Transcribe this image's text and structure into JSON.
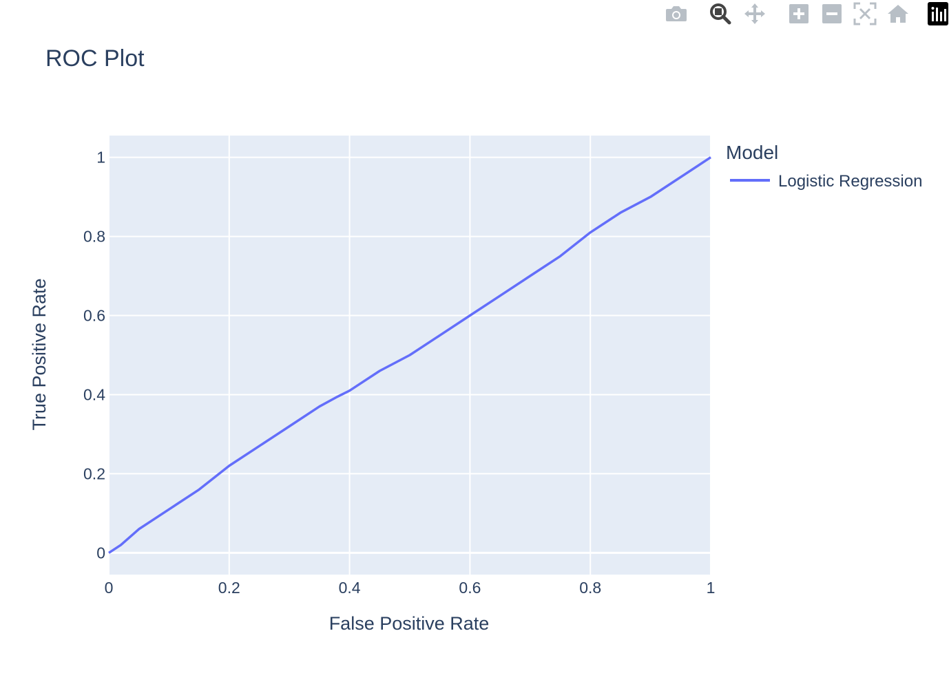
{
  "colors": {
    "plot_bg": "#e5ecf6",
    "grid": "#ffffff",
    "text": "#2a3f5f",
    "line": "#636efa",
    "modebar_icon": "#b8bfc6",
    "modebar_active": "#444444"
  },
  "modebar": {
    "buttons": [
      {
        "name": "camera-icon",
        "label": "Download plot as a png"
      },
      {
        "name": "zoom-icon",
        "label": "Zoom"
      },
      {
        "name": "pan-icon",
        "label": "Pan"
      },
      {
        "name": "zoom-in-icon",
        "label": "Zoom in"
      },
      {
        "name": "zoom-out-icon",
        "label": "Zoom out"
      },
      {
        "name": "autoscale-icon",
        "label": "Autoscale"
      },
      {
        "name": "home-icon",
        "label": "Reset axes"
      },
      {
        "name": "plotly-logo-icon",
        "label": "Produced with Plotly"
      }
    ]
  },
  "chart_data": {
    "type": "line",
    "title": "ROC Plot",
    "xlabel": "False Positive Rate",
    "ylabel": "True Positive Rate",
    "xlim": [
      0,
      1
    ],
    "ylim": [
      -0.055,
      1.055
    ],
    "xticks": [
      "0",
      "0.2",
      "0.4",
      "0.6",
      "0.8",
      "1"
    ],
    "yticks": [
      "0",
      "0.2",
      "0.4",
      "0.6",
      "0.8",
      "1"
    ],
    "xtick_values": [
      0,
      0.2,
      0.4,
      0.6,
      0.8,
      1
    ],
    "ytick_values": [
      0,
      0.2,
      0.4,
      0.6,
      0.8,
      1
    ],
    "grid": true,
    "legend": {
      "title": "Model",
      "placement": "top-right outside"
    },
    "series": [
      {
        "name": "Logistic Regression",
        "x": [
          0,
          0.02,
          0.05,
          0.1,
          0.15,
          0.2,
          0.25,
          0.3,
          0.35,
          0.38,
          0.4,
          0.42,
          0.45,
          0.5,
          0.55,
          0.6,
          0.65,
          0.7,
          0.75,
          0.8,
          0.85,
          0.9,
          0.95,
          1
        ],
        "y": [
          0,
          0.02,
          0.06,
          0.11,
          0.16,
          0.22,
          0.27,
          0.32,
          0.37,
          0.395,
          0.41,
          0.43,
          0.46,
          0.5,
          0.55,
          0.6,
          0.65,
          0.7,
          0.75,
          0.81,
          0.86,
          0.9,
          0.95,
          1
        ]
      }
    ]
  }
}
